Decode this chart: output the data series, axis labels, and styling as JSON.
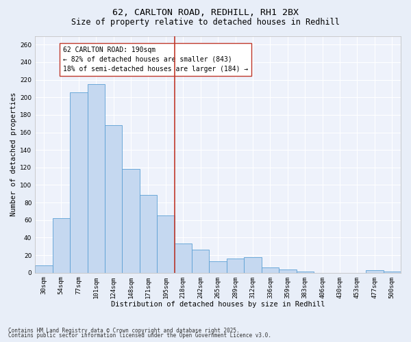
{
  "title1": "62, CARLTON ROAD, REDHILL, RH1 2BX",
  "title2": "Size of property relative to detached houses in Redhill",
  "xlabel": "Distribution of detached houses by size in Redhill",
  "ylabel": "Number of detached properties",
  "categories": [
    "30sqm",
    "54sqm",
    "77sqm",
    "101sqm",
    "124sqm",
    "148sqm",
    "171sqm",
    "195sqm",
    "218sqm",
    "242sqm",
    "265sqm",
    "289sqm",
    "312sqm",
    "336sqm",
    "359sqm",
    "383sqm",
    "406sqm",
    "430sqm",
    "453sqm",
    "477sqm",
    "500sqm"
  ],
  "values": [
    8,
    62,
    206,
    215,
    168,
    118,
    89,
    65,
    33,
    26,
    13,
    16,
    18,
    6,
    4,
    1,
    0,
    0,
    0,
    3,
    1
  ],
  "bar_color": "#c5d8f0",
  "bar_edge_color": "#5a9fd4",
  "vline_x": 7.5,
  "vline_color": "#c0392b",
  "annotation_text": "62 CARLTON ROAD: 190sqm\n← 82% of detached houses are smaller (843)\n18% of semi-detached houses are larger (184) →",
  "annotation_box_color": "#c0392b",
  "ylim": [
    0,
    270
  ],
  "yticks": [
    0,
    20,
    40,
    60,
    80,
    100,
    120,
    140,
    160,
    180,
    200,
    220,
    240,
    260
  ],
  "footer1": "Contains HM Land Registry data © Crown copyright and database right 2025.",
  "footer2": "Contains public sector information licensed under the Open Government Licence v3.0.",
  "bg_color": "#e8eef8",
  "plot_bg_color": "#eef2fb",
  "grid_color": "#ffffff",
  "title_fontsize": 9.5,
  "subtitle_fontsize": 8.5,
  "label_fontsize": 7.5,
  "tick_fontsize": 6.5,
  "annotation_fontsize": 7.0,
  "footer_fontsize": 5.5
}
